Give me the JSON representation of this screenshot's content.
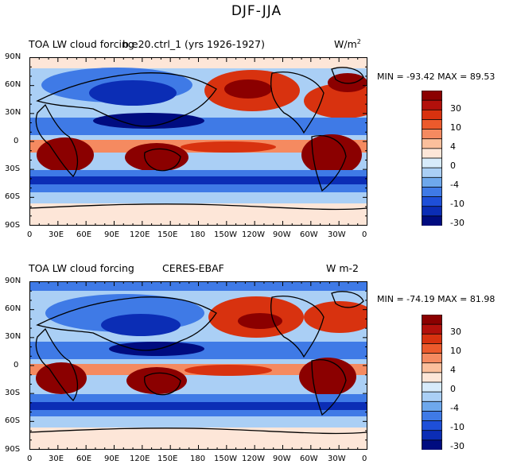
{
  "page_title": "DJF-JJA",
  "panels": [
    {
      "id": "model",
      "left_title": "TOA LW cloud forcing",
      "center_title": "b.e20.ctrl_1 (yrs 1926-1927)",
      "units_prefix": "W/m",
      "units_superscript": "2",
      "min_max": "MIN = -93.42 MAX =  89.53"
    },
    {
      "id": "obs",
      "left_title": "TOA LW cloud forcing",
      "center_title": "CERES-EBAF",
      "units_prefix": "W m-2",
      "units_superscript": "",
      "min_max": "MIN = -74.19 MAX =  81.98"
    }
  ],
  "lat_ticks": [
    "90N",
    "60N",
    "30N",
    "0",
    "30S",
    "60S",
    "90S"
  ],
  "lon_ticks": [
    "0",
    "30E",
    "60E",
    "90E",
    "120E",
    "150E",
    "180",
    "150W",
    "120W",
    "90W",
    "60W",
    "30W",
    "0"
  ],
  "colorbar": {
    "labels": [
      "30",
      "10",
      "4",
      "0",
      "-4",
      "-10",
      "-30"
    ],
    "colors": [
      "#8b0000",
      "#b2100b",
      "#d8320f",
      "#ec5a2c",
      "#f58a60",
      "#fbbf9c",
      "#fde6d8",
      "#d7ebfb",
      "#aacff5",
      "#6ea8ec",
      "#3f7ae6",
      "#1e4fd8",
      "#0b2db5",
      "#000c80"
    ]
  },
  "palette": {
    "deep_red": "#8b0000",
    "red": "#d8320f",
    "light_red": "#f58a60",
    "pale": "#fde6d8",
    "pale_blue": "#aacff5",
    "blue": "#3f7ae6",
    "deep_blue": "#0b2db5",
    "navy": "#000c80"
  }
}
